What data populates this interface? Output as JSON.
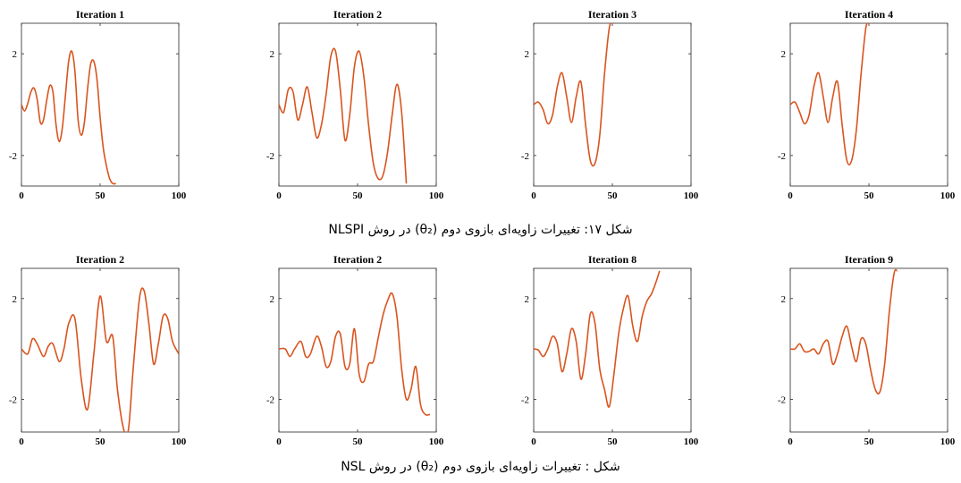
{
  "series_color": "#d9541e",
  "captions": [
    "شکل ۱۷: تغییرات زاویه‌ای بازوی دوم (θ₂) در روش NLSPI",
    "شکل : تغییرات زاویه‌ای بازوی دوم (θ₂) در روش NSL"
  ],
  "chart_data": [
    {
      "type": "line",
      "title": "Iteration 1",
      "xlim": [
        0,
        100
      ],
      "ylim": [
        -3.2,
        3.2
      ],
      "xticks": [
        0,
        50,
        100
      ],
      "yticks": [
        -2,
        2
      ],
      "x": [
        0,
        2,
        4,
        6,
        8,
        10,
        12,
        14,
        16,
        18,
        20,
        22,
        24,
        26,
        28,
        30,
        32,
        34,
        36,
        38,
        40,
        42,
        44,
        46,
        48,
        50,
        52,
        54,
        56,
        58,
        60
      ],
      "values": [
        0,
        -0.25,
        0.05,
        0.5,
        0.65,
        0.2,
        -0.7,
        -0.6,
        0.15,
        0.75,
        0.5,
        -0.8,
        -1.45,
        -0.9,
        0.4,
        1.7,
        2.1,
        1.3,
        -0.6,
        -1.2,
        -0.7,
        0.6,
        1.6,
        1.7,
        1.0,
        -0.5,
        -1.7,
        -2.4,
        -2.9,
        -3.1,
        -3.1
      ]
    },
    {
      "type": "line",
      "title": "Iteration 2",
      "xlim": [
        0,
        100
      ],
      "ylim": [
        -3.2,
        3.2
      ],
      "xticks": [
        0,
        50,
        100
      ],
      "yticks": [
        -2,
        2
      ],
      "x": [
        0,
        3,
        6,
        9,
        12,
        15,
        18,
        21,
        24,
        27,
        30,
        33,
        36,
        39,
        42,
        45,
        48,
        51,
        54,
        57,
        60,
        63,
        66,
        69,
        72,
        75,
        78,
        81
      ],
      "values": [
        0,
        -0.3,
        0.6,
        0.5,
        -0.6,
        0.0,
        0.7,
        -0.3,
        -1.3,
        -0.8,
        0.4,
        1.9,
        2.1,
        0.6,
        -1.4,
        -0.4,
        1.5,
        2.1,
        1.1,
        -0.8,
        -2.3,
        -2.9,
        -2.8,
        -1.9,
        -0.4,
        0.8,
        -0.3,
        -3.1
      ]
    },
    {
      "type": "line",
      "title": "Iteration 3",
      "xlim": [
        0,
        100
      ],
      "ylim": [
        -3.2,
        3.2
      ],
      "xticks": [
        0,
        50,
        100
      ],
      "yticks": [
        -2,
        2
      ],
      "x": [
        0,
        3,
        6,
        9,
        12,
        15,
        18,
        21,
        24,
        27,
        30,
        33,
        36,
        39,
        42,
        45,
        48,
        50
      ],
      "values": [
        0,
        0.1,
        -0.2,
        -0.75,
        -0.4,
        0.7,
        1.25,
        0.3,
        -0.7,
        0.3,
        0.9,
        -0.8,
        -2.2,
        -2.3,
        -1.2,
        1.2,
        3.0,
        3.2
      ]
    },
    {
      "type": "line",
      "title": "Iteration 4",
      "xlim": [
        0,
        100
      ],
      "ylim": [
        -3.2,
        3.2
      ],
      "xticks": [
        0,
        50,
        100
      ],
      "yticks": [
        -2,
        2
      ],
      "x": [
        0,
        3,
        6,
        9,
        12,
        15,
        18,
        21,
        24,
        27,
        30,
        33,
        36,
        39,
        42,
        45,
        48,
        50
      ],
      "values": [
        0,
        0.1,
        -0.3,
        -0.75,
        -0.4,
        0.7,
        1.25,
        0.3,
        -0.7,
        0.3,
        0.9,
        -0.8,
        -2.2,
        -2.2,
        -1.0,
        1.2,
        3.0,
        3.2
      ]
    },
    {
      "type": "line",
      "title": "Iteration 2",
      "xlim": [
        0,
        100
      ],
      "ylim": [
        -3.3,
        3.2
      ],
      "xticks": [
        0,
        50,
        100
      ],
      "yticks": [
        -2,
        2
      ],
      "x": [
        0,
        4,
        7,
        10,
        14,
        17,
        20,
        24,
        27,
        30,
        34,
        38,
        42,
        46,
        50,
        54,
        58,
        61,
        65,
        68,
        71,
        75,
        78,
        81,
        84,
        87,
        90,
        93,
        96,
        100
      ],
      "values": [
        0,
        -0.2,
        0.4,
        0.2,
        -0.3,
        0.1,
        0.2,
        -0.5,
        0.0,
        1.0,
        1.2,
        -1.2,
        -2.4,
        -0.2,
        2.1,
        0.3,
        0.5,
        -1.6,
        -3.2,
        -3.2,
        -0.8,
        2.0,
        2.3,
        1.0,
        -0.6,
        0.2,
        1.3,
        1.2,
        0.3,
        -0.2
      ]
    },
    {
      "type": "line",
      "title": "Iteration 2",
      "xlim": [
        0,
        100
      ],
      "ylim": [
        -3.3,
        3.2
      ],
      "xticks": [
        0,
        50,
        100
      ],
      "yticks": [
        -2,
        2
      ],
      "x": [
        0,
        4,
        7,
        10,
        14,
        17,
        20,
        24,
        27,
        30,
        33,
        36,
        39,
        42,
        45,
        48,
        51,
        54,
        57,
        60,
        63,
        66,
        69,
        72,
        75,
        78,
        81,
        84,
        87,
        90,
        93,
        96
      ],
      "values": [
        0,
        0.0,
        -0.3,
        0.0,
        0.3,
        -0.3,
        -0.2,
        0.5,
        0.1,
        -0.7,
        -0.5,
        0.5,
        0.6,
        -0.7,
        -0.6,
        0.8,
        -1.0,
        -1.3,
        -0.6,
        -0.5,
        0.4,
        1.3,
        1.9,
        2.2,
        1.3,
        -0.8,
        -2.0,
        -1.6,
        -0.7,
        -2.2,
        -2.6,
        -2.6
      ]
    },
    {
      "type": "line",
      "title": "Iteration 8",
      "xlim": [
        0,
        100
      ],
      "ylim": [
        -3.3,
        3.2
      ],
      "xticks": [
        0,
        50,
        100
      ],
      "yticks": [
        -2,
        2
      ],
      "x": [
        0,
        3,
        6,
        9,
        12,
        15,
        18,
        21,
        24,
        27,
        30,
        33,
        36,
        39,
        42,
        45,
        48,
        51,
        54,
        57,
        60,
        63,
        66,
        69,
        72,
        75,
        78,
        80
      ],
      "values": [
        0,
        -0.05,
        -0.3,
        0.0,
        0.5,
        0.2,
        -0.9,
        -0.2,
        0.8,
        0.3,
        -1.2,
        -0.2,
        1.4,
        1.0,
        -0.8,
        -1.6,
        -2.3,
        -1.0,
        0.6,
        1.6,
        2.1,
        0.9,
        0.3,
        1.3,
        1.9,
        2.2,
        2.7,
        3.1
      ]
    },
    {
      "type": "line",
      "title": "Iteration 9",
      "xlim": [
        0,
        100
      ],
      "ylim": [
        -3.3,
        3.2
      ],
      "xticks": [
        0,
        50,
        100
      ],
      "yticks": [
        -2,
        2
      ],
      "x": [
        0,
        3,
        6,
        9,
        12,
        15,
        18,
        21,
        24,
        27,
        30,
        33,
        36,
        39,
        42,
        45,
        48,
        51,
        54,
        57,
        60,
        63,
        66,
        68
      ],
      "values": [
        0,
        0.0,
        0.2,
        -0.1,
        -0.1,
        0.0,
        -0.2,
        0.2,
        0.3,
        -0.6,
        -0.2,
        0.5,
        0.9,
        0.1,
        -0.5,
        0.4,
        0.2,
        -0.8,
        -1.6,
        -1.7,
        -0.6,
        1.5,
        3.0,
        3.1
      ]
    }
  ]
}
